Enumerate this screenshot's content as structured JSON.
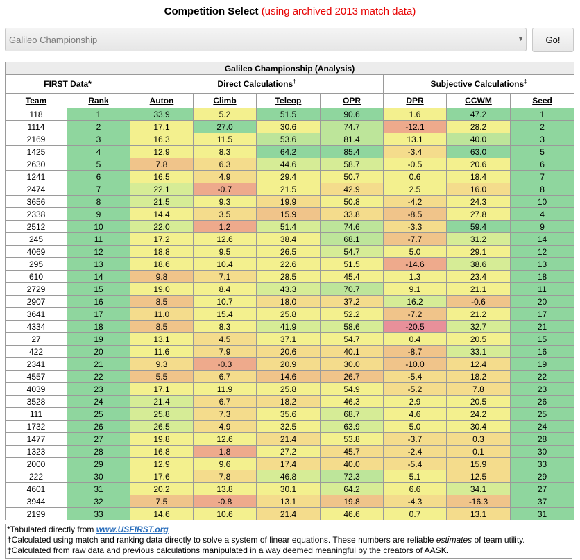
{
  "header": {
    "title": "Competition Select",
    "note": "(using archived 2013 match data)"
  },
  "competition_select": {
    "selected": "Galileo Championship",
    "go_label": "Go!"
  },
  "table": {
    "caption": "Galileo Championship (Analysis)",
    "groups": {
      "first": "FIRST Data*",
      "direct": "Direct Calculations",
      "direct_mark": "†",
      "subjective": "Subjective Calculations",
      "subjective_mark": "‡"
    },
    "columns": [
      "Team",
      "Rank",
      "Auton",
      "Climb",
      "Teleop",
      "OPR",
      "DPR",
      "CCWM",
      "Seed"
    ],
    "colors": {
      "dark_green": "#8fd69e",
      "green": "#bde59a",
      "light_green": "#d6ec96",
      "yellow": "#f3f08e",
      "light_orange": "#f4dc8c",
      "orange": "#f0c48a",
      "salmon": "#eeaa8c",
      "red": "#e8909a"
    },
    "rows": [
      [
        "118",
        "1",
        "33.9",
        "5.2",
        "51.5",
        "90.6",
        "1.6",
        "47.2",
        "1"
      ],
      [
        "1114",
        "2",
        "17.1",
        "27.0",
        "30.6",
        "74.7",
        "-12.1",
        "28.2",
        "2"
      ],
      [
        "2169",
        "3",
        "16.3",
        "11.5",
        "53.6",
        "81.4",
        "13.1",
        "40.0",
        "3"
      ],
      [
        "1425",
        "4",
        "12.9",
        "8.3",
        "64.2",
        "85.4",
        "-3.4",
        "63.0",
        "5"
      ],
      [
        "2630",
        "5",
        "7.8",
        "6.3",
        "44.6",
        "58.7",
        "-0.5",
        "20.6",
        "6"
      ],
      [
        "1241",
        "6",
        "16.5",
        "4.9",
        "29.4",
        "50.7",
        "0.6",
        "18.4",
        "7"
      ],
      [
        "2474",
        "7",
        "22.1",
        "-0.7",
        "21.5",
        "42.9",
        "2.5",
        "16.0",
        "8"
      ],
      [
        "3656",
        "8",
        "21.5",
        "9.3",
        "19.9",
        "50.8",
        "-4.2",
        "24.3",
        "10"
      ],
      [
        "2338",
        "9",
        "14.4",
        "3.5",
        "15.9",
        "33.8",
        "-8.5",
        "27.8",
        "4"
      ],
      [
        "2512",
        "10",
        "22.0",
        "1.2",
        "51.4",
        "74.6",
        "-3.3",
        "59.4",
        "9"
      ],
      [
        "245",
        "11",
        "17.2",
        "12.6",
        "38.4",
        "68.1",
        "-7.7",
        "31.2",
        "14"
      ],
      [
        "4069",
        "12",
        "18.8",
        "9.5",
        "26.5",
        "54.7",
        "5.0",
        "29.1",
        "12"
      ],
      [
        "295",
        "13",
        "18.6",
        "10.4",
        "22.6",
        "51.5",
        "-14.6",
        "38.6",
        "13"
      ],
      [
        "610",
        "14",
        "9.8",
        "7.1",
        "28.5",
        "45.4",
        "1.3",
        "23.4",
        "18"
      ],
      [
        "2729",
        "15",
        "19.0",
        "8.4",
        "43.3",
        "70.7",
        "9.1",
        "21.1",
        "11"
      ],
      [
        "2907",
        "16",
        "8.5",
        "10.7",
        "18.0",
        "37.2",
        "16.2",
        "-0.6",
        "20"
      ],
      [
        "3641",
        "17",
        "11.0",
        "15.4",
        "25.8",
        "52.2",
        "-7.2",
        "21.2",
        "17"
      ],
      [
        "4334",
        "18",
        "8.5",
        "8.3",
        "41.9",
        "58.6",
        "-20.5",
        "32.7",
        "21"
      ],
      [
        "27",
        "19",
        "13.1",
        "4.5",
        "37.1",
        "54.7",
        "0.4",
        "20.5",
        "15"
      ],
      [
        "422",
        "20",
        "11.6",
        "7.9",
        "20.6",
        "40.1",
        "-8.7",
        "33.1",
        "16"
      ],
      [
        "2341",
        "21",
        "9.3",
        "-0.3",
        "20.9",
        "30.0",
        "-10.0",
        "12.4",
        "19"
      ],
      [
        "4557",
        "22",
        "5.5",
        "6.7",
        "14.6",
        "26.7",
        "-5.4",
        "18.2",
        "22"
      ],
      [
        "4039",
        "23",
        "17.1",
        "11.9",
        "25.8",
        "54.9",
        "-5.2",
        "7.8",
        "23"
      ],
      [
        "3528",
        "24",
        "21.4",
        "6.7",
        "18.2",
        "46.3",
        "2.9",
        "20.5",
        "26"
      ],
      [
        "111",
        "25",
        "25.8",
        "7.3",
        "35.6",
        "68.7",
        "4.6",
        "24.2",
        "25"
      ],
      [
        "1732",
        "26",
        "26.5",
        "4.9",
        "32.5",
        "63.9",
        "5.0",
        "30.4",
        "24"
      ],
      [
        "1477",
        "27",
        "19.8",
        "12.6",
        "21.4",
        "53.8",
        "-3.7",
        "0.3",
        "28"
      ],
      [
        "1323",
        "28",
        "16.8",
        "1.8",
        "27.2",
        "45.7",
        "-2.4",
        "0.1",
        "30"
      ],
      [
        "2000",
        "29",
        "12.9",
        "9.6",
        "17.4",
        "40.0",
        "-5.4",
        "15.9",
        "33"
      ],
      [
        "222",
        "30",
        "17.6",
        "7.8",
        "46.8",
        "72.3",
        "5.1",
        "12.5",
        "29"
      ],
      [
        "4601",
        "31",
        "20.2",
        "13.8",
        "30.1",
        "64.2",
        "6.6",
        "34.1",
        "27"
      ],
      [
        "3944",
        "32",
        "7.5",
        "-0.8",
        "13.1",
        "19.8",
        "-4.3",
        "-16.3",
        "37"
      ],
      [
        "2199",
        "33",
        "14.6",
        "10.6",
        "21.4",
        "46.6",
        "0.7",
        "13.1",
        "31"
      ]
    ],
    "row_colors": [
      [
        "dark_green",
        "dark_green",
        "yellow",
        "dark_green",
        "dark_green",
        "yellow",
        "dark_green",
        "dark_green"
      ],
      [
        "dark_green",
        "yellow",
        "dark_green",
        "yellow",
        "green",
        "salmon",
        "yellow",
        "dark_green"
      ],
      [
        "dark_green",
        "yellow",
        "yellow",
        "green",
        "green",
        "yellow",
        "green",
        "dark_green"
      ],
      [
        "dark_green",
        "yellow",
        "yellow",
        "dark_green",
        "dark_green",
        "light_orange",
        "dark_green",
        "dark_green"
      ],
      [
        "dark_green",
        "orange",
        "light_orange",
        "light_green",
        "light_green",
        "yellow",
        "yellow",
        "dark_green"
      ],
      [
        "dark_green",
        "yellow",
        "light_orange",
        "yellow",
        "yellow",
        "yellow",
        "yellow",
        "dark_green"
      ],
      [
        "dark_green",
        "light_green",
        "salmon",
        "yellow",
        "light_orange",
        "yellow",
        "light_orange",
        "dark_green"
      ],
      [
        "dark_green",
        "light_green",
        "yellow",
        "light_orange",
        "yellow",
        "light_orange",
        "yellow",
        "dark_green"
      ],
      [
        "dark_green",
        "yellow",
        "light_orange",
        "orange",
        "light_orange",
        "orange",
        "yellow",
        "dark_green"
      ],
      [
        "dark_green",
        "light_green",
        "salmon",
        "light_green",
        "green",
        "light_orange",
        "dark_green",
        "dark_green"
      ],
      [
        "dark_green",
        "yellow",
        "yellow",
        "yellow",
        "green",
        "orange",
        "light_green",
        "dark_green"
      ],
      [
        "dark_green",
        "yellow",
        "yellow",
        "yellow",
        "light_green",
        "yellow",
        "yellow",
        "dark_green"
      ],
      [
        "dark_green",
        "yellow",
        "yellow",
        "yellow",
        "yellow",
        "salmon",
        "light_green",
        "dark_green"
      ],
      [
        "dark_green",
        "orange",
        "light_orange",
        "yellow",
        "yellow",
        "yellow",
        "yellow",
        "dark_green"
      ],
      [
        "dark_green",
        "yellow",
        "yellow",
        "light_green",
        "green",
        "yellow",
        "yellow",
        "dark_green"
      ],
      [
        "dark_green",
        "orange",
        "yellow",
        "light_orange",
        "light_orange",
        "light_green",
        "orange",
        "dark_green"
      ],
      [
        "dark_green",
        "light_orange",
        "yellow",
        "yellow",
        "yellow",
        "orange",
        "yellow",
        "dark_green"
      ],
      [
        "dark_green",
        "orange",
        "yellow",
        "light_green",
        "light_green",
        "red",
        "light_green",
        "dark_green"
      ],
      [
        "dark_green",
        "yellow",
        "light_orange",
        "yellow",
        "yellow",
        "yellow",
        "yellow",
        "dark_green"
      ],
      [
        "dark_green",
        "yellow",
        "light_orange",
        "light_orange",
        "light_orange",
        "orange",
        "light_green",
        "dark_green"
      ],
      [
        "dark_green",
        "light_orange",
        "salmon",
        "light_orange",
        "light_orange",
        "orange",
        "light_orange",
        "dark_green"
      ],
      [
        "dark_green",
        "orange",
        "light_orange",
        "orange",
        "orange",
        "light_orange",
        "light_orange",
        "dark_green"
      ],
      [
        "dark_green",
        "yellow",
        "yellow",
        "yellow",
        "yellow",
        "light_orange",
        "light_orange",
        "dark_green"
      ],
      [
        "dark_green",
        "light_green",
        "light_orange",
        "light_orange",
        "yellow",
        "yellow",
        "yellow",
        "dark_green"
      ],
      [
        "dark_green",
        "light_green",
        "light_orange",
        "yellow",
        "light_green",
        "yellow",
        "yellow",
        "dark_green"
      ],
      [
        "dark_green",
        "light_green",
        "light_orange",
        "yellow",
        "light_green",
        "yellow",
        "yellow",
        "dark_green"
      ],
      [
        "dark_green",
        "yellow",
        "yellow",
        "light_orange",
        "yellow",
        "light_orange",
        "light_orange",
        "dark_green"
      ],
      [
        "dark_green",
        "yellow",
        "salmon",
        "yellow",
        "light_orange",
        "light_orange",
        "light_orange",
        "dark_green"
      ],
      [
        "dark_green",
        "yellow",
        "yellow",
        "light_orange",
        "light_orange",
        "light_orange",
        "light_orange",
        "dark_green"
      ],
      [
        "dark_green",
        "yellow",
        "light_orange",
        "light_green",
        "green",
        "yellow",
        "light_orange",
        "dark_green"
      ],
      [
        "dark_green",
        "yellow",
        "yellow",
        "yellow",
        "light_green",
        "yellow",
        "light_green",
        "dark_green"
      ],
      [
        "dark_green",
        "orange",
        "salmon",
        "light_orange",
        "orange",
        "light_orange",
        "orange",
        "dark_green"
      ],
      [
        "dark_green",
        "yellow",
        "yellow",
        "light_orange",
        "yellow",
        "yellow",
        "light_orange",
        "dark_green"
      ]
    ]
  },
  "footnotes": {
    "first_prefix": "*Tabulated directly from ",
    "first_link": "www.USFIRST.org",
    "direct_prefix": "†Calculated using match and ranking data directly to solve a system of linear equations. These numbers are reliable ",
    "direct_emph": "estimates",
    "direct_suffix": " of team utility.",
    "subjective": "‡Calculated from raw data and previous calculations manipulated in a way deemed meaningful by the creators of AASK."
  }
}
